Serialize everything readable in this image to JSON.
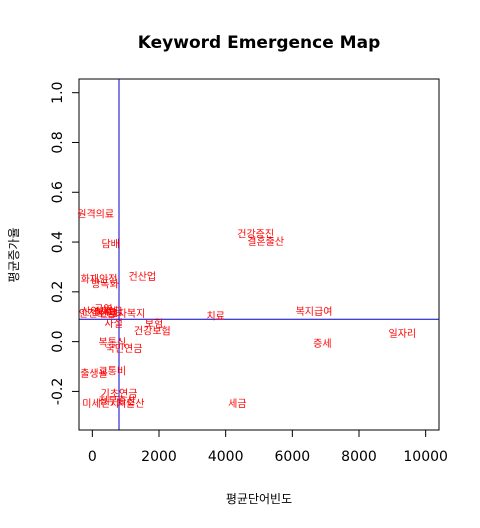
{
  "chart_data": {
    "type": "scatter",
    "title": "Keyword Emergence Map",
    "xlabel": "평균단어빈도",
    "ylabel": "평균증가율",
    "xlim": [
      -400,
      10400
    ],
    "ylim": [
      -0.355,
      1.055
    ],
    "x_ticks": [
      0,
      2000,
      4000,
      6000,
      8000,
      10000
    ],
    "y_ticks": [
      -0.2,
      0.0,
      0.2,
      0.4,
      0.6,
      0.8,
      1.0
    ],
    "x_tick_labels": [
      "0",
      "2000",
      "4000",
      "6000",
      "8000",
      "10000"
    ],
    "y_tick_labels": [
      "-0.2",
      "0.0",
      "0.2",
      "0.4",
      "0.6",
      "0.8",
      "1.0"
    ],
    "ref_lines": {
      "vline_x": 800,
      "hline_y": 0.09
    },
    "grid": false,
    "legend": "none",
    "colors": {
      "points": "#ff0000",
      "ref_lines": "#0000cd",
      "axes": "#000000"
    },
    "points": [
      {
        "label": "원격의료",
        "x": 100,
        "y": 0.51
      },
      {
        "label": "담배",
        "x": 550,
        "y": 0.39
      },
      {
        "label": "화재안전",
        "x": 200,
        "y": 0.25
      },
      {
        "label": "건산업",
        "x": 1500,
        "y": 0.26
      },
      {
        "label": "방폭화",
        "x": 380,
        "y": 0.23
      },
      {
        "label": "금연",
        "x": 330,
        "y": 0.13
      },
      {
        "label": "산업재해",
        "x": 220,
        "y": 0.12
      },
      {
        "label": "안전보험",
        "x": 150,
        "y": 0.11
      },
      {
        "label": "보조금",
        "x": 500,
        "y": 0.12
      },
      {
        "label": "근로자복지",
        "x": 900,
        "y": 0.11
      },
      {
        "label": "사설",
        "x": 640,
        "y": 0.07
      },
      {
        "label": "보험",
        "x": 1850,
        "y": 0.07
      },
      {
        "label": "건강보험",
        "x": 1800,
        "y": 0.04
      },
      {
        "label": "치료",
        "x": 3700,
        "y": 0.1
      },
      {
        "label": "복지급여",
        "x": 6650,
        "y": 0.12
      },
      {
        "label": "건강증진",
        "x": 4900,
        "y": 0.43
      },
      {
        "label": "결혼출산",
        "x": 5200,
        "y": 0.4
      },
      {
        "label": "일자리",
        "x": 9300,
        "y": 0.03
      },
      {
        "label": "증세",
        "x": 6900,
        "y": -0.01
      },
      {
        "label": "복통식",
        "x": 600,
        "y": -0.005
      },
      {
        "label": "국민연금",
        "x": 950,
        "y": -0.03
      },
      {
        "label": "출생율",
        "x": 50,
        "y": -0.13
      },
      {
        "label": "교통비",
        "x": 600,
        "y": -0.12
      },
      {
        "label": "기초연금",
        "x": 800,
        "y": -0.21
      },
      {
        "label": "미세먼지",
        "x": 250,
        "y": -0.25
      },
      {
        "label": "정부출산",
        "x": 750,
        "y": -0.24
      },
      {
        "label": "저출산",
        "x": 1150,
        "y": -0.25
      },
      {
        "label": "세금",
        "x": 4350,
        "y": -0.25
      }
    ]
  }
}
